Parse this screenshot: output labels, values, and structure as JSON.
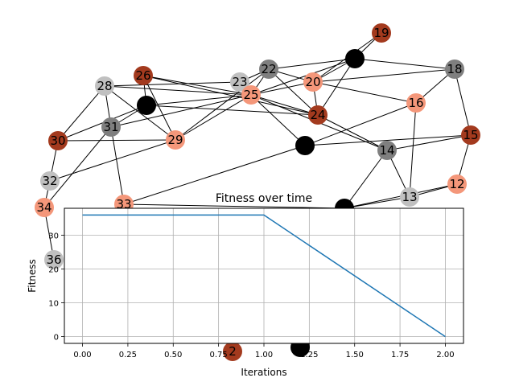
{
  "graph": {
    "colors": {
      "light_gray": "#c0c0c0",
      "gray": "#7f7f7f",
      "black": "#000000",
      "salmon": "#f4977a",
      "rust": "#a33a1e",
      "edge": "#000000"
    },
    "nodes": [
      {
        "label": "19",
        "color": "rust"
      },
      {
        "label": "",
        "color": "black"
      },
      {
        "label": "18",
        "color": "gray"
      },
      {
        "label": "22",
        "color": "gray"
      },
      {
        "label": "26",
        "color": "rust"
      },
      {
        "label": "28",
        "color": "light_gray"
      },
      {
        "label": "23",
        "color": "light_gray"
      },
      {
        "label": "20",
        "color": "salmon"
      },
      {
        "label": "25",
        "color": "salmon"
      },
      {
        "label": "16",
        "color": "salmon"
      },
      {
        "label": "",
        "color": "black"
      },
      {
        "label": "24",
        "color": "rust"
      },
      {
        "label": "31",
        "color": "gray"
      },
      {
        "label": "30",
        "color": "rust"
      },
      {
        "label": "29",
        "color": "salmon"
      },
      {
        "label": "15",
        "color": "rust"
      },
      {
        "label": "",
        "color": "black"
      },
      {
        "label": "14",
        "color": "gray"
      },
      {
        "label": "32",
        "color": "light_gray"
      },
      {
        "label": "12",
        "color": "salmon"
      },
      {
        "label": "13",
        "color": "light_gray"
      },
      {
        "label": "34",
        "color": "salmon"
      },
      {
        "label": "33",
        "color": "salmon"
      },
      {
        "label": "",
        "color": "black"
      },
      {
        "label": "36",
        "color": "light_gray"
      },
      {
        "label": "2",
        "color": "rust"
      },
      {
        "label": "",
        "color": "black"
      }
    ],
    "edges": [
      [
        0,
        1
      ],
      [
        0,
        7
      ],
      [
        1,
        2
      ],
      [
        1,
        3
      ],
      [
        1,
        7
      ],
      [
        1,
        8
      ],
      [
        1,
        11
      ],
      [
        2,
        7
      ],
      [
        2,
        9
      ],
      [
        2,
        15
      ],
      [
        3,
        7
      ],
      [
        3,
        6
      ],
      [
        3,
        8
      ],
      [
        3,
        14
      ],
      [
        3,
        11
      ],
      [
        4,
        10
      ],
      [
        4,
        14
      ],
      [
        4,
        8
      ],
      [
        4,
        11
      ],
      [
        5,
        12
      ],
      [
        5,
        13
      ],
      [
        5,
        8
      ],
      [
        5,
        6
      ],
      [
        5,
        14
      ],
      [
        6,
        8
      ],
      [
        7,
        8
      ],
      [
        7,
        11
      ],
      [
        7,
        9
      ],
      [
        8,
        10
      ],
      [
        8,
        12
      ],
      [
        8,
        14
      ],
      [
        8,
        11
      ],
      [
        8,
        16
      ],
      [
        8,
        17
      ],
      [
        9,
        16
      ],
      [
        9,
        20
      ],
      [
        10,
        12
      ],
      [
        10,
        13
      ],
      [
        10,
        11
      ],
      [
        12,
        21
      ],
      [
        12,
        22
      ],
      [
        13,
        14
      ],
      [
        13,
        18
      ],
      [
        14,
        18
      ],
      [
        15,
        16
      ],
      [
        15,
        19
      ],
      [
        15,
        17
      ],
      [
        17,
        20
      ],
      [
        17,
        23
      ],
      [
        19,
        20
      ],
      [
        19,
        23
      ],
      [
        20,
        23
      ],
      [
        21,
        24
      ],
      [
        18,
        21
      ],
      [
        22,
        23
      ],
      [
        16,
        22
      ],
      [
        11,
        17
      ]
    ]
  },
  "chart_data": {
    "type": "line",
    "title": "Fitness over time",
    "xlabel": "Iterations",
    "ylabel": "Fitness",
    "x": [
      0,
      1,
      2
    ],
    "series": [
      {
        "values": [
          36,
          36,
          0
        ]
      }
    ],
    "xlim": [
      -0.1,
      2.1
    ],
    "ylim": [
      -2,
      38
    ],
    "xticks": [
      "0.00",
      "0.25",
      "0.50",
      "0.75",
      "1.00",
      "1.25",
      "1.50",
      "1.75",
      "2.00"
    ],
    "yticks": [
      "0",
      "10",
      "20",
      "30"
    ],
    "grid": true,
    "line_color": "#1f77b4"
  }
}
